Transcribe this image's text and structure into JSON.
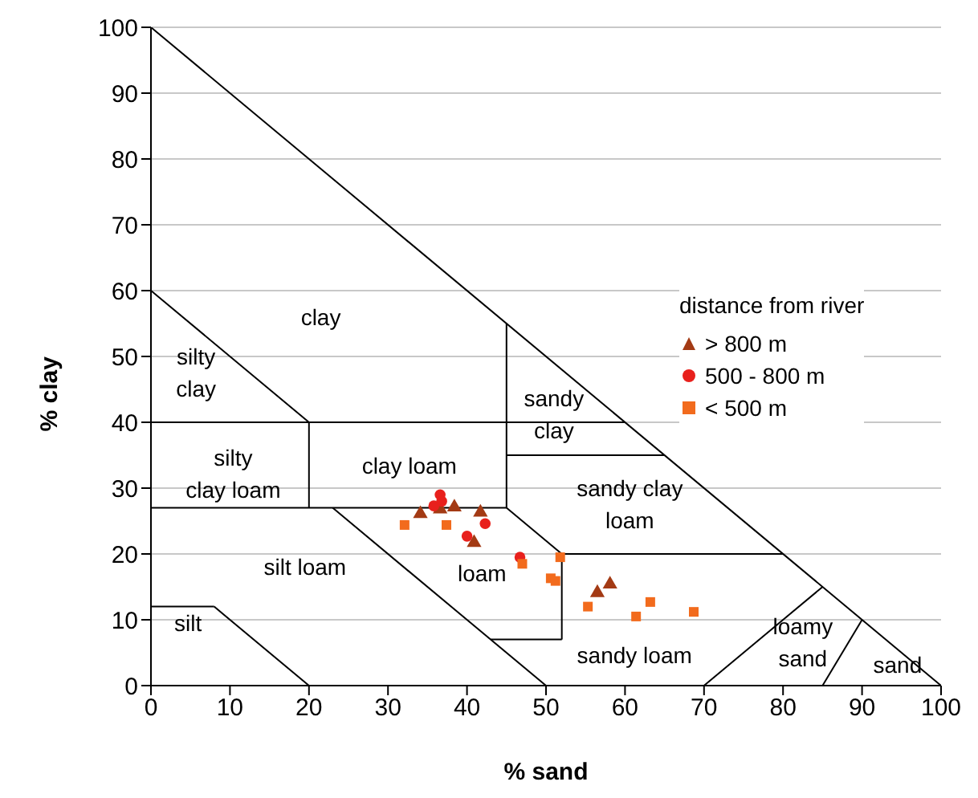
{
  "chart_data": {
    "type": "scatter",
    "xlabel": "% sand",
    "ylabel": "% clay",
    "legend_title": "distance from river",
    "legend": "right",
    "grid": "y",
    "xlim": [
      0,
      100
    ],
    "xticks": [
      0,
      10,
      20,
      30,
      40,
      50,
      60,
      70,
      80,
      90,
      100
    ],
    "ylim": [
      0,
      100
    ],
    "yticks": [
      0,
      10,
      20,
      30,
      40,
      50,
      60,
      70,
      80,
      90,
      100
    ],
    "series": [
      {
        "name": "> 800 m",
        "color": "#a33a14",
        "marker": "triangle",
        "x": [
          34.1,
          38.4,
          41.7,
          36.6,
          40.9,
          56.5,
          58.1
        ],
        "values": [
          26.1,
          27.1,
          26.3,
          26.8,
          21.7,
          14.1,
          15.4
        ]
      },
      {
        "name": "500 - 800 m",
        "color": "#e8201c",
        "marker": "circle",
        "x": [
          36.6,
          35.8,
          36.8,
          42.3,
          40,
          46.7
        ],
        "values": [
          29,
          27.3,
          28,
          24.6,
          22.7,
          19.5
        ]
      },
      {
        "name": "< 500 m",
        "color": "#f26b1d",
        "marker": "square",
        "x": [
          32.1,
          37.4,
          47,
          51.8,
          50.6,
          51.2,
          55.3,
          63.2,
          61.4,
          68.7
        ],
        "values": [
          24.4,
          24.4,
          18.5,
          19.5,
          16.3,
          15.9,
          12,
          12.7,
          10.5,
          11.2
        ]
      },
      {
        "type": "line",
        "color": "#000000",
        "marker": "none",
        "x": [
          0,
          100
        ],
        "values": [
          100,
          0
        ]
      },
      {
        "type": "line",
        "color": "#000000",
        "marker": "none",
        "x": [
          0,
          20
        ],
        "values": [
          60,
          40
        ]
      },
      {
        "type": "line",
        "color": "#000000",
        "marker": "none",
        "x": [
          0,
          60
        ],
        "values": [
          40,
          40
        ]
      },
      {
        "type": "line",
        "color": "#000000",
        "marker": "none",
        "x": [
          45,
          45
        ],
        "values": [
          55,
          27
        ]
      },
      {
        "type": "line",
        "color": "#000000",
        "marker": "none",
        "x": [
          45,
          65
        ],
        "values": [
          35,
          35
        ]
      },
      {
        "type": "line",
        "color": "#000000",
        "marker": "none",
        "x": [
          20,
          20
        ],
        "values": [
          40,
          27
        ]
      },
      {
        "type": "line",
        "color": "#000000",
        "marker": "none",
        "x": [
          0,
          45
        ],
        "values": [
          27,
          27
        ]
      },
      {
        "type": "line",
        "color": "#000000",
        "marker": "none",
        "x": [
          23,
          50
        ],
        "values": [
          27,
          0
        ]
      },
      {
        "type": "line",
        "color": "#000000",
        "marker": "none",
        "x": [
          45,
          52
        ],
        "values": [
          27,
          20
        ]
      },
      {
        "type": "line",
        "color": "#000000",
        "marker": "none",
        "x": [
          52,
          52
        ],
        "values": [
          20,
          7
        ]
      },
      {
        "type": "line",
        "color": "#000000",
        "marker": "none",
        "x": [
          43,
          52
        ],
        "values": [
          7,
          7
        ]
      },
      {
        "type": "line",
        "color": "#000000",
        "marker": "none",
        "x": [
          52,
          80
        ],
        "values": [
          20,
          20
        ]
      },
      {
        "type": "line",
        "color": "#000000",
        "marker": "none",
        "x": [
          70,
          85
        ],
        "values": [
          0,
          15
        ]
      },
      {
        "type": "line",
        "color": "#000000",
        "marker": "none",
        "x": [
          85,
          90
        ],
        "values": [
          0,
          10
        ]
      },
      {
        "type": "line",
        "color": "#000000",
        "marker": "none",
        "x": [
          0,
          8
        ],
        "values": [
          12,
          12
        ]
      },
      {
        "type": "line",
        "color": "#000000",
        "marker": "none",
        "x": [
          8,
          20
        ],
        "values": [
          12,
          0
        ]
      }
    ],
    "annotations": [
      "clay",
      "silty\nclay",
      "silty\nclay loam",
      "sandy\nclay",
      "clay loam",
      "sandy clay\nloam",
      "silt loam",
      "loam",
      "silt",
      "sandy loam",
      "loamy\nsand",
      "sand"
    ]
  }
}
